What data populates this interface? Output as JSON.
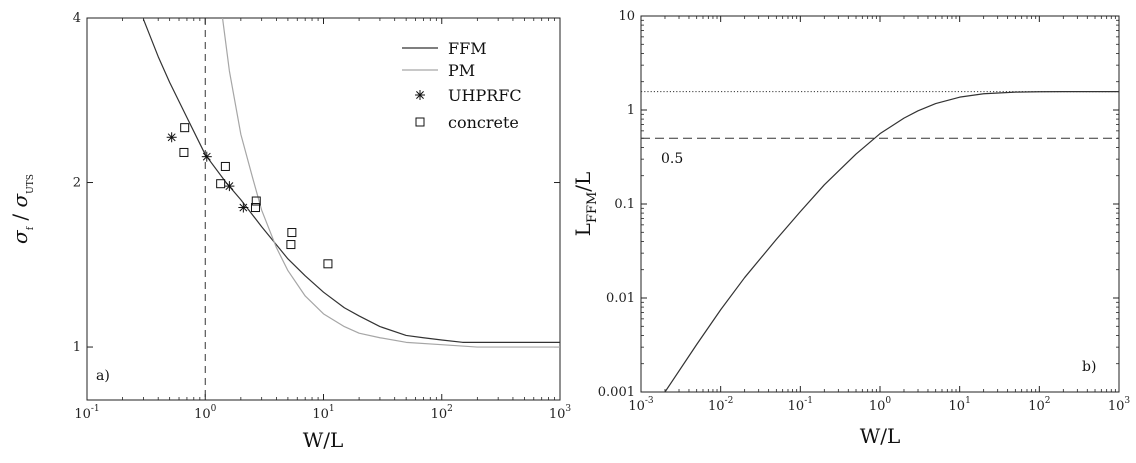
{
  "chart_data": [
    {
      "panel": "a)",
      "type": "line",
      "x_scale": "log",
      "y_scale": "log",
      "xlim": [
        0.1,
        1000
      ],
      "ylim": [
        0.8,
        4
      ],
      "xlabel": "W/L",
      "ylabel": "σ_f / σ_UTS",
      "ylabel_parts": {
        "sym1": "σ",
        "sub1": "f",
        "sep": " / ",
        "sym2": "σ",
        "sub2": "UTS"
      },
      "x_ticks": [
        {
          "base": "10",
          "exp": "-1"
        },
        {
          "base": "10",
          "exp": "0"
        },
        {
          "base": "10",
          "exp": "1"
        },
        {
          "base": "10",
          "exp": "2"
        },
        {
          "base": "10",
          "exp": "3"
        }
      ],
      "y_ticks": [
        "1",
        "2",
        "4"
      ],
      "y_tick_values": [
        1,
        2,
        4
      ],
      "vertical_reference": {
        "x": 1,
        "style": "dashed"
      },
      "legend_position": "top-right",
      "series": [
        {
          "name": "FFM",
          "kind": "line",
          "color": "#333333",
          "x": [
            0.3,
            0.4,
            0.5,
            0.7,
            1,
            1.5,
            2,
            3,
            5,
            7,
            10,
            15,
            20,
            30,
            50,
            70,
            100,
            150,
            200,
            500,
            1000
          ],
          "y": [
            3.98,
            3.4,
            3.05,
            2.63,
            2.25,
            2.0,
            1.86,
            1.66,
            1.45,
            1.35,
            1.26,
            1.18,
            1.14,
            1.09,
            1.05,
            1.04,
            1.03,
            1.02,
            1.02,
            1.02,
            1.02
          ]
        },
        {
          "name": "PM",
          "kind": "line",
          "color": "#a6a6a6",
          "x": [
            1.4,
            1.6,
            2.0,
            2.5,
            3,
            4,
            5,
            7,
            10,
            15,
            20,
            30,
            50,
            100,
            200,
            500,
            1000
          ],
          "y": [
            4.0,
            3.2,
            2.45,
            2.05,
            1.78,
            1.52,
            1.38,
            1.24,
            1.15,
            1.09,
            1.06,
            1.04,
            1.02,
            1.01,
            1.0,
            1.0,
            1.0
          ]
        },
        {
          "name": "UHPRFC",
          "kind": "marker",
          "marker": "asterisk",
          "x": [
            0.52,
            1.03,
            1.6,
            2.1
          ],
          "y": [
            2.42,
            2.23,
            1.97,
            1.8
          ]
        },
        {
          "name": "concrete",
          "kind": "marker",
          "marker": "square",
          "x": [
            0.67,
            0.66,
            1.48,
            1.35,
            2.7,
            2.66,
            5.4,
            5.3,
            10.9
          ],
          "y": [
            2.52,
            2.27,
            2.14,
            1.99,
            1.85,
            1.8,
            1.62,
            1.54,
            1.42
          ]
        }
      ]
    },
    {
      "panel": "b)",
      "type": "line",
      "x_scale": "log",
      "y_scale": "log",
      "xlim": [
        0.001,
        1000
      ],
      "ylim": [
        0.001,
        10
      ],
      "xlabel": "W/L",
      "ylabel": "L_FFM/L",
      "ylabel_parts": {
        "main": "L",
        "sub": "FFM",
        "tail": "/L"
      },
      "x_ticks": [
        {
          "base": "10",
          "exp": "-3"
        },
        {
          "base": "10",
          "exp": "-2"
        },
        {
          "base": "10",
          "exp": "-1"
        },
        {
          "base": "10",
          "exp": "0"
        },
        {
          "base": "10",
          "exp": "1"
        },
        {
          "base": "10",
          "exp": "2"
        },
        {
          "base": "10",
          "exp": "3"
        }
      ],
      "y_ticks": [
        "0.001",
        "0.01",
        "0.1",
        "1",
        "10"
      ],
      "y_tick_values": [
        0.001,
        0.01,
        0.1,
        1,
        10
      ],
      "annotation": "0.5",
      "reference_lines": [
        {
          "y": 0.5,
          "style": "dashed"
        },
        {
          "y": 1.57,
          "style": "dotted"
        }
      ],
      "series": [
        {
          "kind": "line",
          "color": "#333333",
          "x": [
            0.002,
            0.005,
            0.01,
            0.02,
            0.05,
            0.1,
            0.2,
            0.5,
            1,
            2,
            3,
            5,
            10,
            20,
            50,
            100,
            200,
            500,
            1000
          ],
          "y": [
            0.001,
            0.0032,
            0.0075,
            0.0165,
            0.042,
            0.083,
            0.16,
            0.34,
            0.56,
            0.82,
            0.98,
            1.17,
            1.37,
            1.49,
            1.55,
            1.565,
            1.57,
            1.57,
            1.57
          ]
        }
      ]
    }
  ]
}
